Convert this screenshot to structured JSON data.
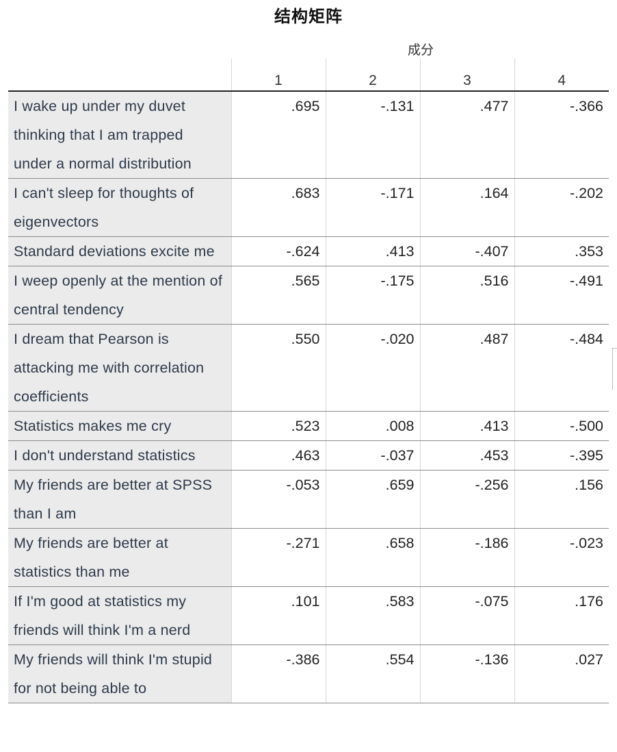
{
  "title": "结构矩阵",
  "component_header": "成分",
  "columns": [
    "1",
    "2",
    "3",
    "4"
  ],
  "rows": [
    {
      "label": "I wake up under my duvet thinking that I am trapped under a normal distribution",
      "values": [
        ".695",
        "-.131",
        ".477",
        "-.366"
      ]
    },
    {
      "label": "I can't sleep for thoughts of eigenvectors",
      "values": [
        ".683",
        "-.171",
        ".164",
        "-.202"
      ]
    },
    {
      "label": "Standard deviations excite me",
      "values": [
        "-.624",
        ".413",
        "-.407",
        ".353"
      ]
    },
    {
      "label": "I weep openly at the mention of central tendency",
      "values": [
        ".565",
        "-.175",
        ".516",
        "-.491"
      ]
    },
    {
      "label": "I dream that Pearson is attacking me with correlation coefficients",
      "values": [
        ".550",
        "-.020",
        ".487",
        "-.484"
      ]
    },
    {
      "label": "Statistics makes me cry",
      "values": [
        ".523",
        ".008",
        ".413",
        "-.500"
      ]
    },
    {
      "label": "I don't understand statistics",
      "values": [
        ".463",
        "-.037",
        ".453",
        "-.395"
      ]
    },
    {
      "label": "My friends are better at SPSS than I am",
      "values": [
        "-.053",
        ".659",
        "-.256",
        ".156"
      ]
    },
    {
      "label": "My friends are better at statistics than me",
      "values": [
        "-.271",
        ".658",
        "-.186",
        "-.023"
      ]
    },
    {
      "label": "If I'm good at statistics my friends will think I'm a nerd",
      "values": [
        ".101",
        ".583",
        "-.075",
        ".176"
      ]
    },
    {
      "label": "My friends will think I'm stupid for not being able to",
      "values": [
        "-.386",
        ".554",
        "-.136",
        ".027"
      ]
    }
  ]
}
